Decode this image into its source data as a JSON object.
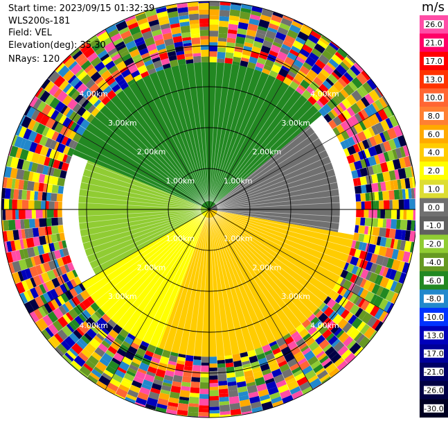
{
  "header": {
    "start_time": "Start time: 2023/09/15 01:32:39",
    "instrument": "WLS200s-181",
    "field": "Field: VEL",
    "elevation": "Elevation(deg): 35.30",
    "nrays": "NRays: 120"
  },
  "colorbar": {
    "unit": "m/s",
    "labels": [
      "26.0",
      "21.0",
      "17.0",
      "13.0",
      "10.0",
      "8.0",
      "6.0",
      "4.0",
      "2.0",
      "1.0",
      "0.0",
      "-1.0",
      "-2.0",
      "-4.0",
      "-6.0",
      "-8.0",
      "-10.0",
      "-13.0",
      "-17.0",
      "-21.0",
      "-26.0",
      "-30.0"
    ],
    "colors": [
      "#ff4da6",
      "#ff0066",
      "#ff0000",
      "#ff3300",
      "#ff6633",
      "#ff8033",
      "#ffaa00",
      "#ffcc00",
      "#ffff00",
      "#dddd33",
      "#707070",
      "#606060",
      "#90cc33",
      "#669922",
      "#228822",
      "#2288cc",
      "#0033ff",
      "#0000bb",
      "#000099",
      "#000066",
      "#000044",
      "#000022"
    ]
  },
  "chart_data": {
    "type": "ppi",
    "field": "VEL",
    "unit": "m/s",
    "nrays": 120,
    "elevation_deg": 35.3,
    "range_rings": [
      {
        "range_km": 1.0,
        "label": "1.00km"
      },
      {
        "range_km": 2.0,
        "label": "2.00km"
      },
      {
        "range_km": 3.0,
        "label": "3.00km"
      },
      {
        "range_km": 4.0,
        "label": "4.00km"
      }
    ],
    "sectors": [
      {
        "az_from": 292,
        "az_to": 50,
        "inner_km": 0.0,
        "outer_km": 3.6,
        "value": -6.0
      },
      {
        "az_from": 50,
        "az_to": 100,
        "inner_km": 0.0,
        "outer_km": 3.2,
        "value": 0.0
      },
      {
        "az_from": 100,
        "az_to": 200,
        "inner_km": 0.0,
        "outer_km": 3.6,
        "value": 4.0
      },
      {
        "az_from": 200,
        "az_to": 240,
        "inner_km": 0.0,
        "outer_km": 3.6,
        "value": 2.0
      },
      {
        "az_from": 240,
        "az_to": 292,
        "inner_km": 0.0,
        "outer_km": 3.2,
        "value": -2.0
      }
    ]
  }
}
